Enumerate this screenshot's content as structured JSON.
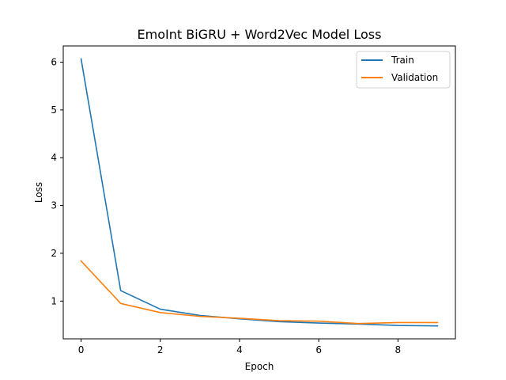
{
  "chart_data": {
    "type": "line",
    "title": "EmoInt BiGRU + Word2Vec Model Loss",
    "xlabel": "Epoch",
    "ylabel": "Loss",
    "x": [
      0,
      1,
      2,
      3,
      4,
      5,
      6,
      7,
      8,
      9
    ],
    "series": [
      {
        "name": "Train",
        "color": "#1f77b4",
        "values": [
          6.07,
          1.22,
          0.83,
          0.7,
          0.63,
          0.57,
          0.54,
          0.52,
          0.49,
          0.48
        ]
      },
      {
        "name": "Validation",
        "color": "#ff7f0e",
        "values": [
          1.84,
          0.95,
          0.76,
          0.68,
          0.64,
          0.59,
          0.58,
          0.53,
          0.55,
          0.55
        ]
      }
    ],
    "xlim": [
      -0.45,
      9.45
    ],
    "ylim": [
      0.21,
      6.34
    ],
    "xticks": [
      0,
      2,
      4,
      6,
      8
    ],
    "yticks": [
      1,
      2,
      3,
      4,
      5,
      6
    ],
    "legend": {
      "position": "top-right"
    },
    "grid": false
  }
}
